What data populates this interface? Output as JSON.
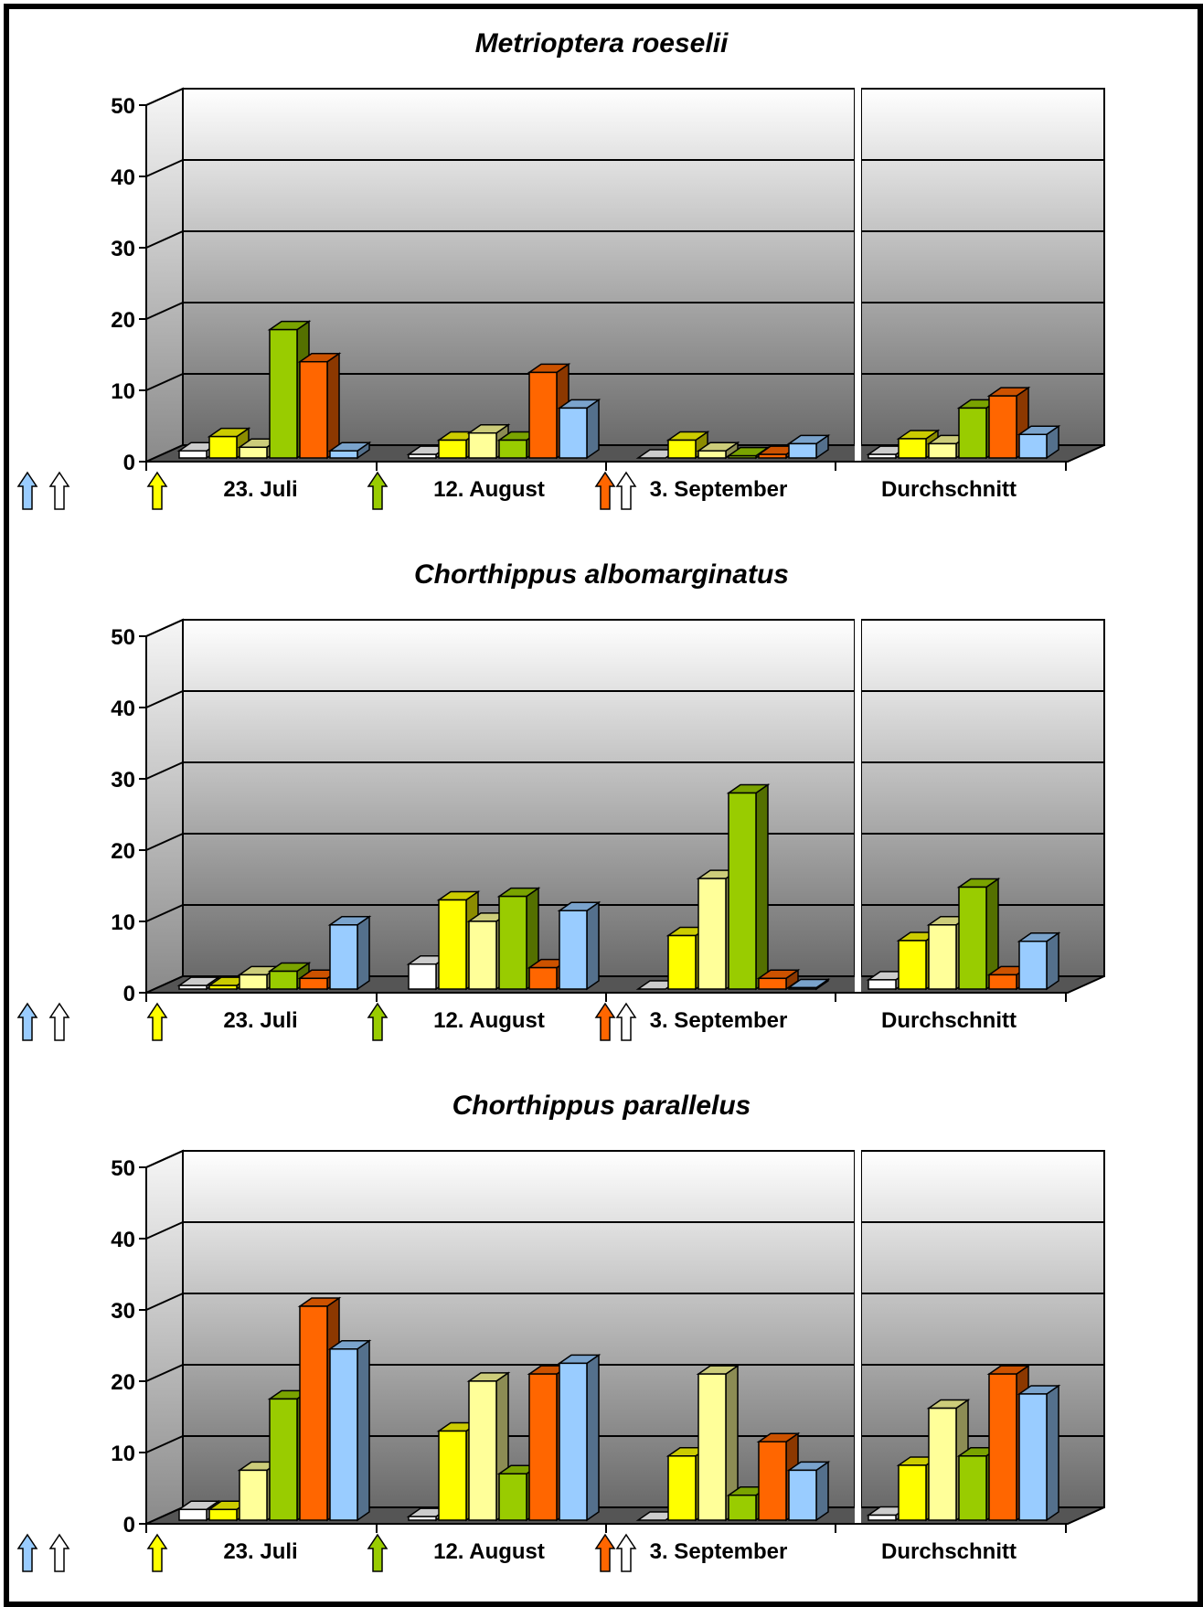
{
  "chart_data": [
    {
      "type": "bar",
      "title": "Metrioptera roeselii",
      "categories": [
        "23. Juli",
        "12. August",
        "3. September",
        "Durchschnitt"
      ],
      "y_ticks": [
        "0",
        "10",
        "20",
        "30",
        "40",
        "50"
      ],
      "ylim": [
        0,
        50
      ],
      "grid": true,
      "series": [
        {
          "color": "#ffffff",
          "values": [
            1,
            0.5,
            0,
            0.5
          ]
        },
        {
          "color": "#ffff00",
          "values": [
            3,
            2.5,
            2.5,
            2.7
          ]
        },
        {
          "color": "#ffff99",
          "values": [
            1.5,
            3.5,
            1,
            2
          ]
        },
        {
          "color": "#99cc00",
          "values": [
            18,
            2.5,
            0.3,
            7
          ]
        },
        {
          "color": "#ff6600",
          "values": [
            13.5,
            12,
            0.5,
            8.7
          ]
        },
        {
          "color": "#99ccff",
          "values": [
            1,
            7,
            2,
            3.3
          ]
        }
      ]
    },
    {
      "type": "bar",
      "title": "Chorthippus albomarginatus",
      "categories": [
        "23. Juli",
        "12. August",
        "3. September",
        "Durchschnitt"
      ],
      "y_ticks": [
        "0",
        "10",
        "20",
        "30",
        "40",
        "50"
      ],
      "ylim": [
        0,
        50
      ],
      "grid": true,
      "series": [
        {
          "color": "#ffffff",
          "values": [
            0.5,
            3.5,
            0,
            1.3
          ]
        },
        {
          "color": "#ffff00",
          "values": [
            0.5,
            12.5,
            7.5,
            6.8
          ]
        },
        {
          "color": "#ffff99",
          "values": [
            2,
            9.5,
            15.5,
            9
          ]
        },
        {
          "color": "#99cc00",
          "values": [
            2.5,
            13,
            27.5,
            14.3
          ]
        },
        {
          "color": "#ff6600",
          "values": [
            1.5,
            3,
            1.5,
            2
          ]
        },
        {
          "color": "#99ccff",
          "values": [
            9,
            11,
            0.2,
            6.7
          ]
        }
      ]
    },
    {
      "type": "bar",
      "title": "Chorthippus parallelus",
      "categories": [
        "23. Juli",
        "12. August",
        "3. September",
        "Durchschnitt"
      ],
      "y_ticks": [
        "0",
        "10",
        "20",
        "30",
        "40",
        "50"
      ],
      "ylim": [
        0,
        50
      ],
      "grid": true,
      "series": [
        {
          "color": "#ffffff",
          "values": [
            1.5,
            0.5,
            0,
            0.7
          ]
        },
        {
          "color": "#ffff00",
          "values": [
            1.5,
            12.5,
            9,
            7.7
          ]
        },
        {
          "color": "#ffff99",
          "values": [
            7,
            19.5,
            20.5,
            15.7
          ]
        },
        {
          "color": "#99cc00",
          "values": [
            17,
            6.5,
            3.5,
            9
          ]
        },
        {
          "color": "#ff6600",
          "values": [
            30,
            20.5,
            11,
            20.5
          ]
        },
        {
          "color": "#99ccff",
          "values": [
            24,
            22,
            7,
            17.7
          ]
        }
      ]
    }
  ],
  "arrows": [
    {
      "icon": "blue-arrow-icon",
      "color": "#99ccff"
    },
    {
      "icon": "white-arrow-icon",
      "color": "#ffffff"
    },
    {
      "icon": "yellow-arrow-icon",
      "color": "#ffff00"
    },
    {
      "icon": "green-arrow-icon",
      "color": "#99cc00"
    },
    {
      "icon": "orange-arrow-icon",
      "color": "#ff6600"
    },
    {
      "icon": "white-arrow-icon",
      "color": "#ffffff"
    }
  ]
}
